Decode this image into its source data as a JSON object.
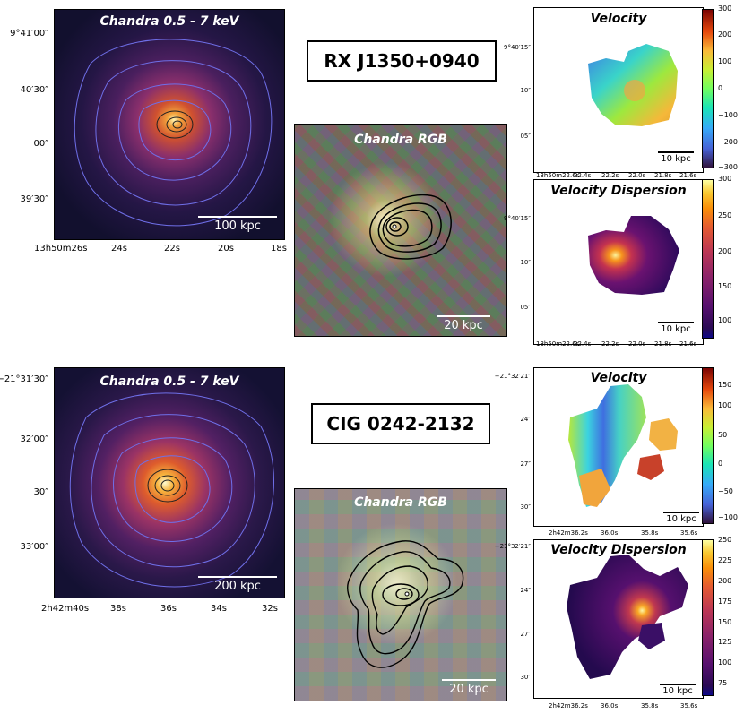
{
  "top": {
    "object_name": "RX J1350+0940",
    "xray": {
      "title": "Chandra 0.5 - 7 keV",
      "dec_ticks": [
        "9°41′00″",
        "40′30″",
        "00″",
        "39′30″"
      ],
      "ra_ticks": [
        "13h50m26s",
        "24s",
        "22s",
        "20s",
        "18s"
      ],
      "scale": "100 kpc"
    },
    "rgb": {
      "title": "Chandra RGB",
      "scale": "20 kpc"
    },
    "velocity": {
      "title": "Velocity",
      "dec_ticks": [
        "9°40′15″",
        "10″",
        "05″"
      ],
      "ra_ticks": [
        "13h50m22.6s",
        "22.4s",
        "22.2s",
        "22.0s",
        "21.8s",
        "21.6s"
      ],
      "scale": "10 kpc",
      "cbar_ticks": [
        "300",
        "200",
        "100",
        "0",
        "−100",
        "−200",
        "−300"
      ]
    },
    "dispersion": {
      "title": "Velocity Dispersion",
      "dec_ticks": [
        "9°40′15″",
        "10″",
        "05″"
      ],
      "ra_ticks": [
        "13h50m22.6s",
        "22.4s",
        "22.2s",
        "22.0s",
        "21.8s",
        "21.6s"
      ],
      "scale": "10 kpc",
      "cbar_ticks": [
        "300",
        "250",
        "200",
        "150",
        "100"
      ]
    }
  },
  "bottom": {
    "object_name": "CIG 0242-2132",
    "xray": {
      "title": "Chandra 0.5 - 7 keV",
      "dec_ticks": [
        "−21°31′30″",
        "32′00″",
        "30″",
        "33′00″"
      ],
      "ra_ticks": [
        "2h42m40s",
        "38s",
        "36s",
        "34s",
        "32s"
      ],
      "scale": "200 kpc"
    },
    "rgb": {
      "title": "Chandra RGB",
      "scale": "20 kpc"
    },
    "velocity": {
      "title": "Velocity",
      "dec_ticks": [
        "−21°32′21″",
        "24″",
        "27″",
        "30″"
      ],
      "ra_ticks": [
        "2h42m36.2s",
        "36.0s",
        "35.8s",
        "35.6s"
      ],
      "scale": "10 kpc",
      "cbar_ticks": [
        "150",
        "100",
        "50",
        "0",
        "−50",
        "−100"
      ]
    },
    "dispersion": {
      "title": "Velocity Dispersion",
      "dec_ticks": [
        "−21°32′21″",
        "24″",
        "27″",
        "30″"
      ],
      "ra_ticks": [
        "2h42m36.2s",
        "36.0s",
        "35.8s",
        "35.6s"
      ],
      "scale": "10 kpc",
      "cbar_ticks": [
        "250",
        "225",
        "200",
        "175",
        "150",
        "125",
        "100",
        "75"
      ]
    }
  }
}
